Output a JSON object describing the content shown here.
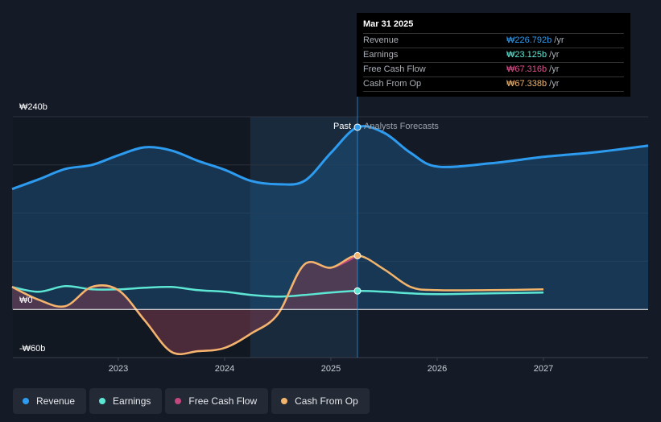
{
  "tooltip": {
    "date": "Mar 31 2025",
    "rows": [
      {
        "label": "Revenue",
        "value": "₩226.792b",
        "unit": "/yr",
        "color": "#2d9cf0"
      },
      {
        "label": "Earnings",
        "value": "₩23.125b",
        "unit": "/yr",
        "color": "#5ce6d3"
      },
      {
        "label": "Free Cash Flow",
        "value": "₩67.316b",
        "unit": "/yr",
        "color": "#e0508f"
      },
      {
        "label": "Cash From Op",
        "value": "₩67.338b",
        "unit": "/yr",
        "color": "#f2b56b"
      }
    ]
  },
  "markers": {
    "past": "Past",
    "forecast": "Analysts Forecasts"
  },
  "legend": [
    {
      "label": "Revenue",
      "color": "#2d9cf0"
    },
    {
      "label": "Earnings",
      "color": "#5ce6d3"
    },
    {
      "label": "Free Cash Flow",
      "color": "#c2477f"
    },
    {
      "label": "Cash From Op",
      "color": "#f2b56b"
    }
  ],
  "chart_data": {
    "type": "line",
    "title": "",
    "xlabel": "",
    "ylabel": "",
    "ylim": [
      -60,
      240
    ],
    "y_ticks": [
      {
        "value": 240,
        "label": "₩240b"
      },
      {
        "value": 0,
        "label": "₩0"
      },
      {
        "value": -60,
        "label": "-₩60b"
      }
    ],
    "x_ticks": [
      {
        "value": 2023.0,
        "label": "2023"
      },
      {
        "value": 2024.0,
        "label": "2024"
      },
      {
        "value": 2025.0,
        "label": "2025"
      },
      {
        "value": 2026.0,
        "label": "2026"
      },
      {
        "value": 2027.0,
        "label": "2027"
      }
    ],
    "xlim": [
      2021.75,
      2028.0
    ],
    "past_start": 2024.24,
    "present": 2025.25,
    "series": [
      {
        "name": "Revenue",
        "color": "#2d9cf0",
        "x": [
          2022.0,
          2022.25,
          2022.5,
          2022.75,
          2023.0,
          2023.25,
          2023.5,
          2023.75,
          2024.0,
          2024.25,
          2024.5,
          2024.75,
          2025.0,
          2025.25,
          2025.5,
          2025.75,
          2026.0,
          2026.5,
          2027.0,
          2027.5,
          2028.0
        ],
        "y": [
          150,
          162,
          175,
          180,
          192,
          202,
          198,
          185,
          174,
          160,
          156,
          160,
          195,
          227,
          220,
          195,
          178,
          182,
          190,
          196,
          204
        ]
      },
      {
        "name": "Earnings",
        "color": "#5ce6d3",
        "x": [
          2022.0,
          2022.25,
          2022.5,
          2022.75,
          2023.0,
          2023.25,
          2023.5,
          2023.75,
          2024.0,
          2024.25,
          2024.5,
          2024.75,
          2025.0,
          2025.25,
          2025.5,
          2025.75,
          2026.0,
          2026.5,
          2027.0
        ],
        "y": [
          28,
          22,
          29,
          25,
          25,
          27,
          28,
          24,
          22,
          18,
          16,
          18,
          21,
          23,
          22,
          20,
          19,
          20,
          21
        ]
      },
      {
        "name": "Free Cash Flow",
        "color": "#c2477f",
        "x": [
          2022.0,
          2022.25,
          2022.5,
          2022.75,
          2023.0,
          2023.25,
          2023.5,
          2023.75,
          2024.0,
          2024.25,
          2024.5,
          2024.75,
          2025.0,
          2025.25
        ],
        "y": [
          28,
          12,
          4,
          28,
          24,
          -14,
          -53,
          -52,
          -48,
          -30,
          -6,
          56,
          52,
          67
        ]
      },
      {
        "name": "Cash From Op",
        "color": "#f2b56b",
        "x": [
          2022.0,
          2022.25,
          2022.5,
          2022.75,
          2023.0,
          2023.25,
          2023.5,
          2023.75,
          2024.0,
          2024.25,
          2024.5,
          2024.75,
          2025.0,
          2025.25,
          2025.5,
          2025.75,
          2026.0,
          2026.5,
          2027.0
        ],
        "y": [
          28,
          12,
          4,
          28,
          24,
          -14,
          -53,
          -52,
          -48,
          -30,
          -6,
          56,
          52,
          67,
          50,
          28,
          24,
          24,
          25
        ]
      }
    ]
  }
}
